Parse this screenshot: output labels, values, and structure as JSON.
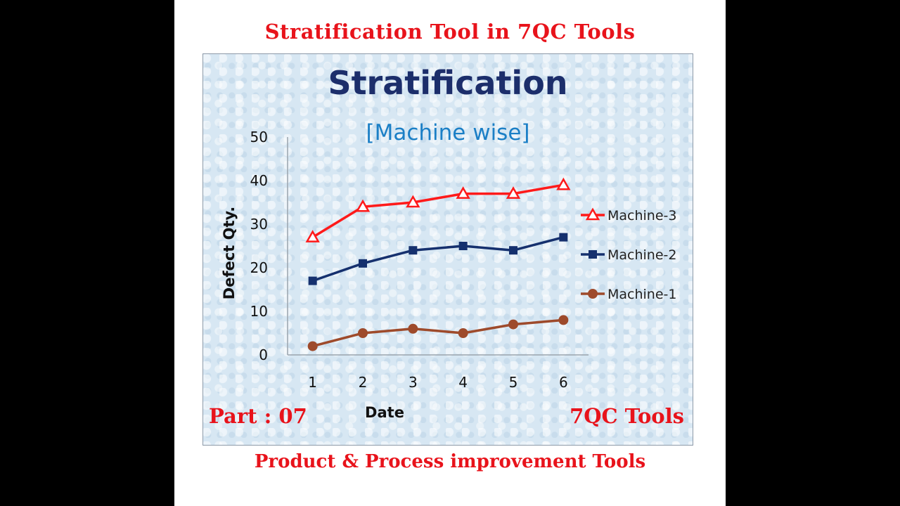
{
  "header": {
    "title": "Stratification Tool in 7QC Tools"
  },
  "footer": {
    "title": "Product & Process improvement Tools"
  },
  "labels": {
    "part": "Part : 07",
    "brand": "7QC Tools"
  },
  "chart_data": {
    "type": "line",
    "title": "Stratification",
    "subtitle": "[Machine wise]",
    "xlabel": "Date",
    "ylabel": "Defect Qty.",
    "x": [
      1,
      2,
      3,
      4,
      5,
      6
    ],
    "ylim": [
      0,
      50
    ],
    "yticks": [
      0,
      10,
      20,
      30,
      40,
      50
    ],
    "grid": false,
    "legend_position": "right",
    "series": [
      {
        "name": "Machine-3",
        "values": [
          27,
          34,
          35,
          37,
          37,
          39
        ],
        "color": "#ff1a1a",
        "marker": "triangle"
      },
      {
        "name": "Machine-2",
        "values": [
          17,
          21,
          24,
          25,
          24,
          27
        ],
        "color": "#15306e",
        "marker": "square"
      },
      {
        "name": "Machine-1",
        "values": [
          2,
          5,
          6,
          5,
          7,
          8
        ],
        "color": "#9e4a2b",
        "marker": "circle"
      }
    ]
  }
}
